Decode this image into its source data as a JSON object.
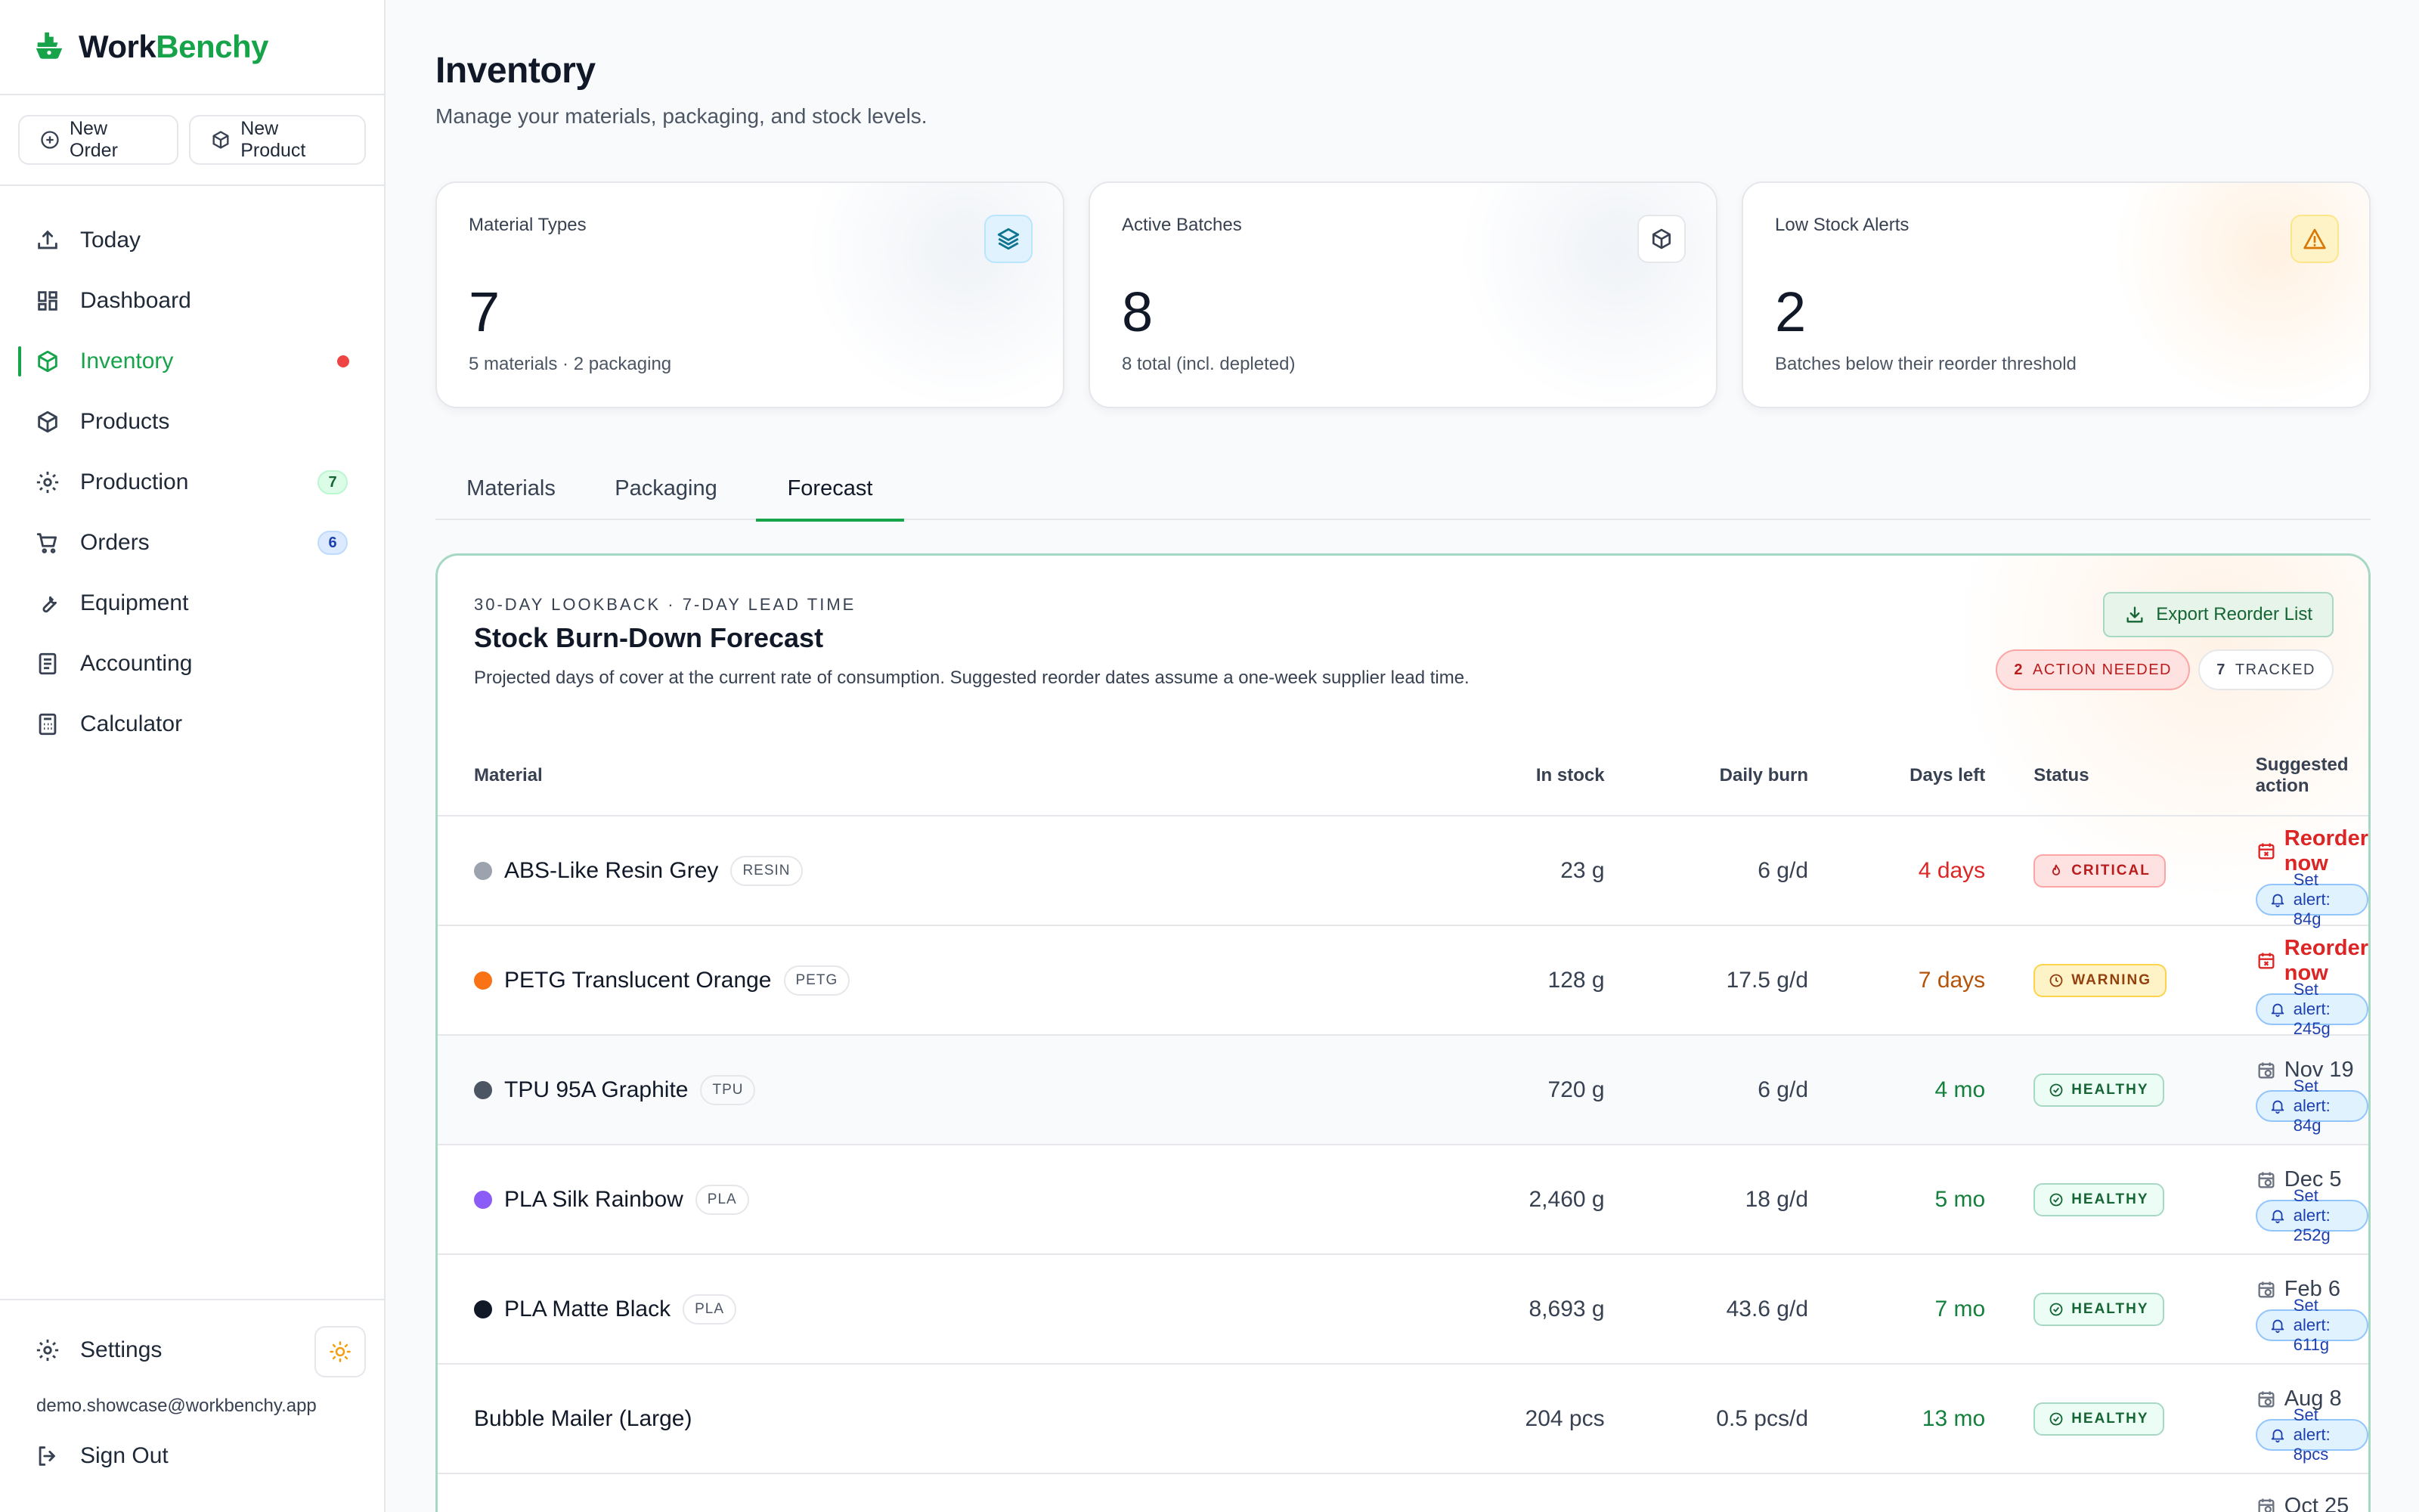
{
  "brand": {
    "name_part1": "Work",
    "name_part2": "Benchy",
    "color": "#16a34a"
  },
  "quick_actions": {
    "new_order": "New Order",
    "new_product": "New Product"
  },
  "nav": {
    "items": [
      {
        "label": "Today",
        "icon": "upload-tray-icon"
      },
      {
        "label": "Dashboard",
        "icon": "dashboard-grid-icon"
      },
      {
        "label": "Inventory",
        "icon": "cube-icon",
        "active": true,
        "alert_dot": true
      },
      {
        "label": "Products",
        "icon": "box-icon"
      },
      {
        "label": "Production",
        "icon": "gear-icon",
        "badge": "7"
      },
      {
        "label": "Orders",
        "icon": "cart-icon",
        "badge": "6"
      },
      {
        "label": "Equipment",
        "icon": "wrench-icon"
      },
      {
        "label": "Accounting",
        "icon": "document-icon"
      },
      {
        "label": "Calculator",
        "icon": "calculator-icon"
      }
    ]
  },
  "sidebar_bottom": {
    "settings": "Settings",
    "email": "demo.showcase@workbenchy.app",
    "sign_out": "Sign Out"
  },
  "page": {
    "title": "Inventory",
    "subtitle": "Manage your materials, packaging, and stock levels."
  },
  "stats": [
    {
      "label": "Material Types",
      "value": "7",
      "note": "5 materials · 2 packaging",
      "icon": "layers-icon"
    },
    {
      "label": "Active Batches",
      "value": "8",
      "note": "8 total (incl. depleted)",
      "icon": "box-icon"
    },
    {
      "label": "Low Stock Alerts",
      "value": "2",
      "note": "Batches below their reorder threshold",
      "icon": "warning-icon"
    }
  ],
  "tabs": {
    "materials": "Materials",
    "packaging": "Packaging",
    "forecast": "Forecast",
    "active": "Forecast"
  },
  "forecast": {
    "eyebrow": "30-DAY LOOKBACK · 7-DAY LEAD TIME",
    "title": "Stock Burn-Down Forecast",
    "description": "Projected days of cover at the current rate of consumption. Suggested reorder dates assume a one-week supplier lead time.",
    "export_label": "Export Reorder List",
    "action_needed_count": "2",
    "action_needed_label": "ACTION NEEDED",
    "tracked_count": "7",
    "tracked_label": "TRACKED",
    "columns": {
      "material": "Material",
      "in_stock": "In stock",
      "daily_burn": "Daily burn",
      "days_left": "Days left",
      "status": "Status",
      "action": "Suggested action"
    },
    "rows": [
      {
        "name": "ABS-Like Resin Grey",
        "tag": "RESIN",
        "color": "#9ca3af",
        "in_stock": "23 g",
        "daily_burn": "6 g/d",
        "days_left": "4 days",
        "status": "CRITICAL",
        "action": "Reorder now",
        "alert": "Set alert: 84g"
      },
      {
        "name": "PETG Translucent Orange",
        "tag": "PETG",
        "color": "#f97316",
        "in_stock": "128 g",
        "daily_burn": "17.5 g/d",
        "days_left": "7 days",
        "status": "WARNING",
        "action": "Reorder now",
        "alert": "Set alert: 245g"
      },
      {
        "name": "TPU 95A Graphite",
        "tag": "TPU",
        "color": "#4b5563",
        "in_stock": "720 g",
        "daily_burn": "6 g/d",
        "days_left": "4 mo",
        "status": "HEALTHY",
        "action": "Nov 19",
        "alert": "Set alert: 84g"
      },
      {
        "name": "PLA Silk Rainbow",
        "tag": "PLA",
        "color": "#8b5cf6",
        "in_stock": "2,460 g",
        "daily_burn": "18 g/d",
        "days_left": "5 mo",
        "status": "HEALTHY",
        "action": "Dec 5",
        "alert": "Set alert: 252g"
      },
      {
        "name": "PLA Matte Black",
        "tag": "PLA",
        "color": "#111827",
        "in_stock": "8,693 g",
        "daily_burn": "43.6 g/d",
        "days_left": "7 mo",
        "status": "HEALTHY",
        "action": "Feb 6",
        "alert": "Set alert: 611g"
      },
      {
        "name": "Bubble Mailer (Large)",
        "in_stock": "204 pcs",
        "daily_burn": "0.5 pcs/d",
        "days_left": "13 mo",
        "status": "HEALTHY",
        "action": "Aug 8",
        "alert": "Set alert: 8pcs"
      },
      {
        "action": "Oct 25"
      }
    ]
  }
}
